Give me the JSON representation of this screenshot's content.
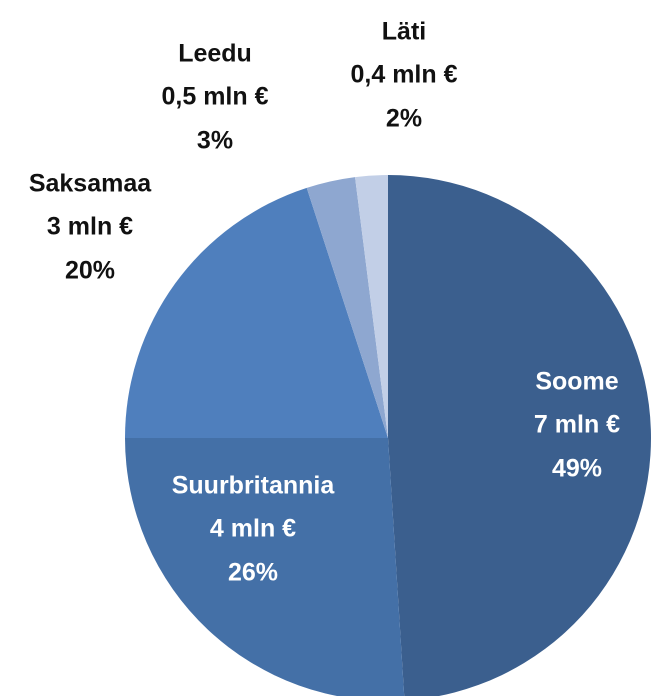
{
  "chart_data": {
    "type": "pie",
    "categories": [
      "Soome",
      "Suurbritannia",
      "Saksamaa",
      "Leedu",
      "Läti"
    ],
    "amount_labels": [
      "7 mln €",
      "4 mln €",
      "3 mln €",
      "0,5 mln €",
      "0,4 mln €"
    ],
    "values": [
      49,
      26,
      20,
      3,
      2
    ],
    "value_labels": [
      "49%",
      "26%",
      "20%",
      "3%",
      "2%"
    ],
    "colors": [
      "#3b5f8e",
      "#4470a7",
      "#4f7fbd",
      "#8ea7d0",
      "#c2cfe7"
    ]
  }
}
